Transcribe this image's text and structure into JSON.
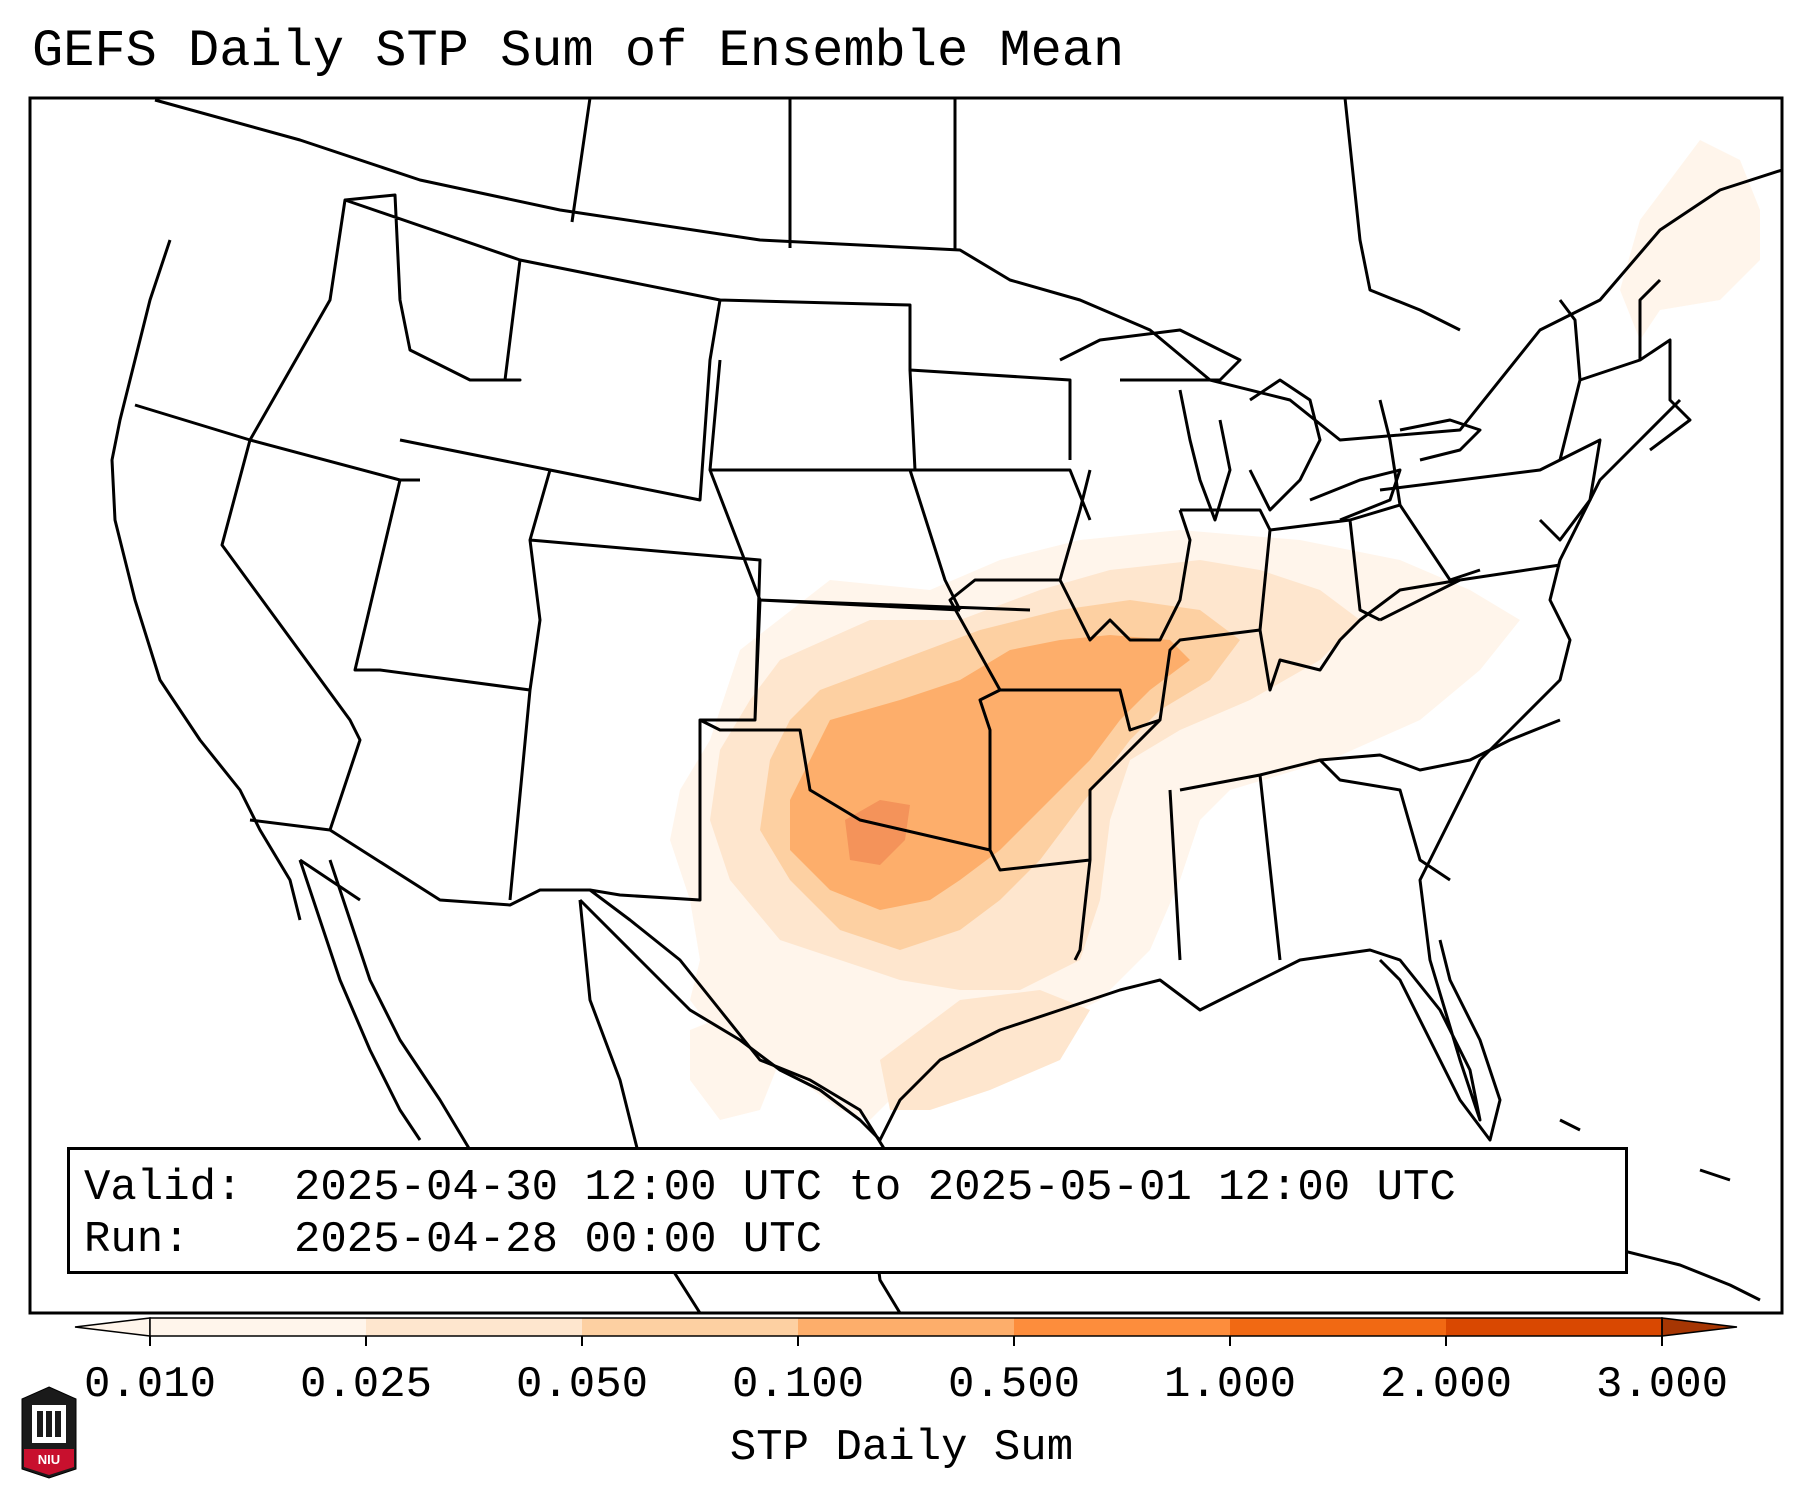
{
  "title": "GEFS Daily STP Sum of Ensemble Mean",
  "info": {
    "valid_label": "Valid:",
    "valid_value": "2025-04-30 12:00 UTC to 2025-05-01 12:00 UTC",
    "run_label": "Run:",
    "run_value": "2025-04-28 00:00 UTC"
  },
  "colorbar": {
    "label": "STP Daily Sum",
    "ticks": [
      "0.010",
      "0.025",
      "0.050",
      "0.100",
      "0.500",
      "1.000",
      "2.000",
      "3.000"
    ],
    "colors": [
      "#fff5eb",
      "#fee6ce",
      "#fdd0a2",
      "#fdae6b",
      "#fd8d3c",
      "#f16913",
      "#d94801"
    ],
    "over_color": "#a63603",
    "extend": "both"
  },
  "shading_colors": {
    "light": "#fff5eb",
    "low": "#fee6ce",
    "mid": "#fdd0a2",
    "high": "#fdae6b",
    "max": "#f4935a"
  },
  "logo": {
    "text": "NIU",
    "color": "#c8102e"
  }
}
